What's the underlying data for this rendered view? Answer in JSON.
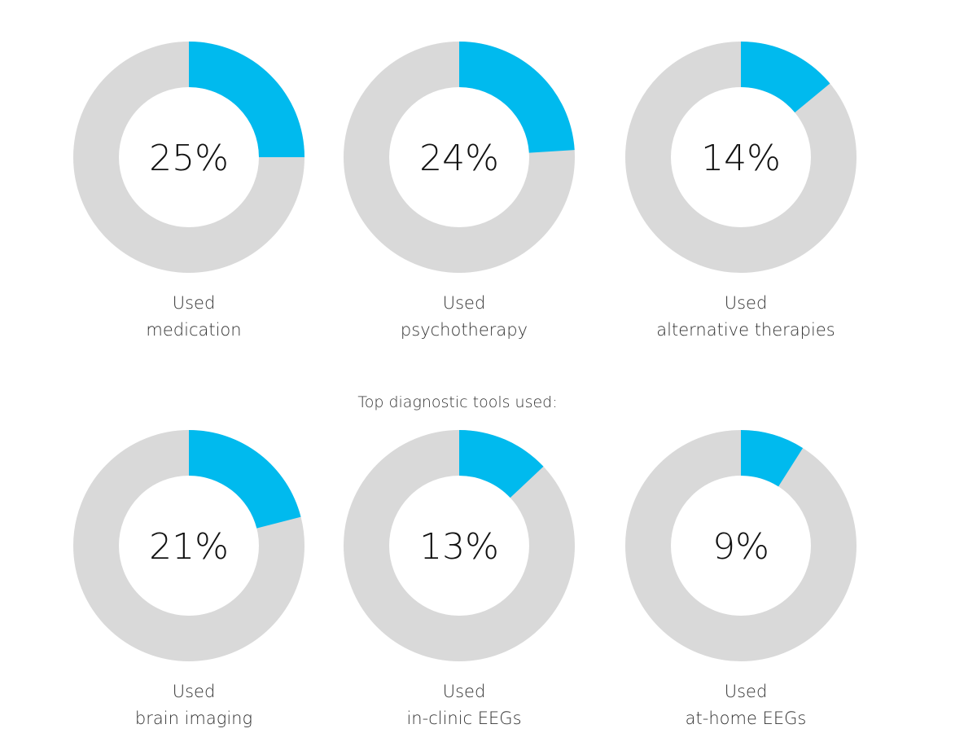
{
  "colors": {
    "accent": "#00BAEE",
    "track": "#D9D9D9"
  },
  "section_heading": "Top diagnostic tools used:",
  "chart_data": [
    {
      "type": "pie",
      "group": "treatments",
      "value": 25,
      "value_label": "25%",
      "caption_line1": "Used",
      "caption_line2": "medication"
    },
    {
      "type": "pie",
      "group": "treatments",
      "value": 24,
      "value_label": "24%",
      "caption_line1": "Used",
      "caption_line2": "psychotherapy"
    },
    {
      "type": "pie",
      "group": "treatments",
      "value": 14,
      "value_label": "14%",
      "caption_line1": "Used",
      "caption_line2": "alternative therapies"
    },
    {
      "type": "pie",
      "group": "diagnostic-tools",
      "value": 21,
      "value_label": "21%",
      "caption_line1": "Used",
      "caption_line2": "brain imaging"
    },
    {
      "type": "pie",
      "group": "diagnostic-tools",
      "value": 13,
      "value_label": "13%",
      "caption_line1": "Used",
      "caption_line2": "in-clinic EEGs"
    },
    {
      "type": "pie",
      "group": "diagnostic-tools",
      "value": 9,
      "value_label": "9%",
      "caption_line1": "Used",
      "caption_line2": "at-home EEGs"
    }
  ]
}
